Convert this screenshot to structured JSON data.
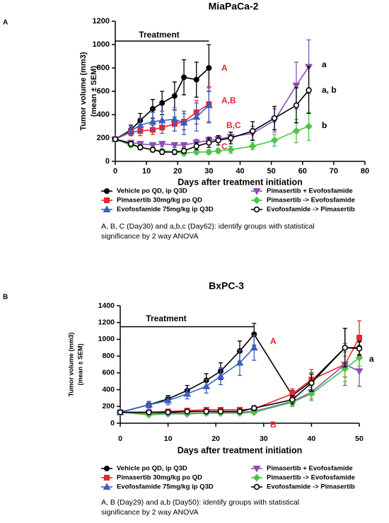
{
  "chart_data": [
    {
      "type": "line",
      "panel": "A",
      "title": "MiaPaCa-2",
      "ylabel": [
        "Tumor volume (mm3)",
        "(mean ± SEM)"
      ],
      "xlabel": "Days after treatment initiation",
      "xlim": [
        0,
        80
      ],
      "xticks": [
        0,
        10,
        20,
        30,
        40,
        50,
        60,
        70,
        80
      ],
      "ylim": [
        0,
        1200
      ],
      "yticks": [
        0,
        200,
        400,
        600,
        800,
        1000,
        1200
      ],
      "treatment": "Treatment",
      "annotations": [
        {
          "text": "A",
          "color": "#e8262a"
        },
        {
          "text": "A,B",
          "color": "#e8262a"
        },
        {
          "text": "B,C",
          "color": "#e8262a"
        },
        {
          "text": "C",
          "color": "#e8262a"
        },
        {
          "text": "a",
          "color": "#000000"
        },
        {
          "text": "a, b",
          "color": "#000000"
        },
        {
          "text": "b",
          "color": "#000000"
        }
      ],
      "note": [
        "A, B, C (Day30) and a,b,c (Day62): identify groups with statistical",
        "significance by 2 way ANOVA"
      ],
      "series": [
        {
          "name": "Vehicle po QD, ip Q3D",
          "color": "#000000",
          "marker": "circle",
          "x": [
            0,
            5,
            8,
            12,
            15,
            19,
            22,
            26,
            30
          ],
          "values": [
            190,
            270,
            350,
            450,
            500,
            560,
            720,
            700,
            800
          ],
          "errors": [
            10,
            40,
            60,
            80,
            100,
            120,
            150,
            150,
            200
          ]
        },
        {
          "name": "Pimasertib 30mg/kg po QD",
          "color": "#e8262a",
          "marker": "square",
          "x": [
            0,
            5,
            8,
            12,
            15,
            19,
            22,
            26,
            30
          ],
          "values": [
            190,
            250,
            260,
            270,
            290,
            320,
            340,
            420,
            490
          ],
          "errors": [
            10,
            30,
            40,
            40,
            50,
            60,
            70,
            100,
            150
          ]
        },
        {
          "name": "Evofosfamide 75mg/kg ip Q3D",
          "color": "#3a5fbf",
          "marker": "triangle",
          "x": [
            0,
            5,
            8,
            12,
            15,
            19,
            22,
            26,
            30
          ],
          "values": [
            190,
            260,
            310,
            340,
            350,
            360,
            330,
            380,
            480
          ],
          "errors": [
            10,
            40,
            60,
            80,
            80,
            100,
            100,
            120,
            150
          ]
        },
        {
          "name": "Pimasertib + Evofosfamide",
          "color": "#8a4fb0",
          "marker": "triangle-down",
          "x": [
            0,
            5,
            8,
            12,
            15,
            19,
            22,
            26,
            30,
            33,
            37,
            44,
            51,
            58,
            62
          ],
          "values": [
            190,
            160,
            150,
            140,
            150,
            140,
            140,
            160,
            180,
            190,
            210,
            240,
            350,
            650,
            810
          ],
          "errors": [
            10,
            20,
            20,
            20,
            20,
            20,
            20,
            30,
            30,
            30,
            40,
            60,
            100,
            200,
            230
          ]
        },
        {
          "name": "Pimasertib -> Evofosfamide",
          "color": "#4fc24a",
          "marker": "diamond",
          "x": [
            0,
            5,
            8,
            12,
            15,
            19,
            22,
            26,
            30,
            33,
            37,
            44,
            51,
            58,
            62
          ],
          "values": [
            190,
            140,
            120,
            100,
            90,
            80,
            70,
            80,
            80,
            90,
            100,
            130,
            180,
            260,
            300
          ],
          "errors": [
            10,
            20,
            20,
            20,
            20,
            20,
            20,
            20,
            20,
            20,
            30,
            30,
            50,
            100,
            120
          ]
        },
        {
          "name": "Evofosfamide -> Pimasertib",
          "color": "#000000",
          "marker": "circle-open",
          "x": [
            0,
            5,
            8,
            12,
            15,
            19,
            22,
            26,
            30,
            33,
            37,
            44,
            51,
            58,
            62
          ],
          "values": [
            190,
            150,
            120,
            100,
            80,
            80,
            90,
            130,
            160,
            180,
            200,
            260,
            370,
            480,
            610
          ],
          "errors": [
            10,
            20,
            20,
            20,
            20,
            20,
            20,
            30,
            40,
            40,
            50,
            80,
            100,
            150,
            200
          ]
        }
      ]
    },
    {
      "type": "line",
      "panel": "B",
      "title": "BxPC-3",
      "ylabel": [
        "Tumor volume (mm3)",
        "(mean ± SEM)"
      ],
      "xlabel": "Days after treatment initiation",
      "xlim": [
        0,
        50
      ],
      "xticks": [
        0,
        10,
        20,
        30,
        40,
        50
      ],
      "ylim": [
        0,
        1400
      ],
      "yticks": [
        0,
        200,
        400,
        600,
        800,
        1000,
        1200,
        1400
      ],
      "treatment": "Treatment",
      "annotations": [
        {
          "text": "A",
          "color": "#e8262a"
        },
        {
          "text": "B",
          "color": "#e8262a"
        },
        {
          "text": "a",
          "color": "#000000"
        }
      ],
      "note": [
        "A, B (Day29) and a,b (Day50): identify groups with statistical",
        "significance by 2 way ANOVA"
      ],
      "series": [
        {
          "name": "Vehicle po QD, ip Q3D",
          "color": "#000000",
          "marker": "circle",
          "x": [
            0,
            6,
            10,
            14,
            18,
            21,
            25,
            28,
            36,
            40,
            47,
            50
          ],
          "values": [
            130,
            220,
            290,
            390,
            510,
            620,
            860,
            1060,
            330,
            500,
            900,
            900
          ],
          "errors": [
            10,
            40,
            40,
            60,
            80,
            100,
            120,
            130,
            60,
            100,
            230,
            80
          ]
        },
        {
          "name": "Pimasertib 30mg/kg po QD",
          "color": "#e8262a",
          "marker": "square",
          "x": [
            0,
            6,
            10,
            14,
            18,
            21,
            25,
            28,
            36,
            40,
            47,
            50
          ],
          "values": [
            130,
            130,
            140,
            150,
            160,
            160,
            160,
            170,
            350,
            520,
            700,
            1020
          ],
          "errors": [
            10,
            20,
            20,
            20,
            20,
            20,
            20,
            30,
            60,
            120,
            150,
            200
          ]
        },
        {
          "name": "Evofosfamide 75mg/kg ip Q3D",
          "color": "#3a5fbf",
          "marker": "triangle",
          "x": [
            0,
            6,
            10,
            14,
            18,
            21,
            25,
            28
          ],
          "values": [
            130,
            220,
            270,
            350,
            440,
            560,
            720,
            900
          ],
          "errors": [
            10,
            40,
            50,
            60,
            80,
            100,
            150,
            150
          ]
        },
        {
          "name": "Pimasertib + Evofosfamide",
          "color": "#8a4fb0",
          "marker": "triangle-down",
          "x": [
            0,
            6,
            10,
            14,
            18,
            21,
            25,
            28,
            36,
            40,
            47,
            50
          ],
          "values": [
            130,
            110,
            120,
            120,
            120,
            130,
            130,
            140,
            260,
            370,
            700,
            620
          ],
          "errors": [
            10,
            20,
            20,
            20,
            20,
            20,
            20,
            20,
            50,
            80,
            250,
            180
          ]
        },
        {
          "name": "Pimasertib -> Evofosfamide",
          "color": "#4fc24a",
          "marker": "diamond",
          "x": [
            0,
            6,
            10,
            14,
            18,
            21,
            25,
            28,
            36,
            40,
            47,
            50
          ],
          "values": [
            130,
            100,
            110,
            110,
            120,
            120,
            120,
            130,
            250,
            350,
            650,
            780
          ],
          "errors": [
            10,
            20,
            20,
            20,
            20,
            20,
            20,
            20,
            50,
            80,
            150,
            100
          ]
        },
        {
          "name": "Evofosfamide -> Pimasertib",
          "color": "#000000",
          "marker": "circle-open",
          "x": [
            0,
            6,
            10,
            14,
            18,
            21,
            25,
            28,
            36,
            40,
            47,
            50
          ],
          "values": [
            130,
            130,
            130,
            140,
            140,
            140,
            140,
            180,
            280,
            480,
            900,
            890
          ],
          "errors": [
            10,
            20,
            20,
            20,
            20,
            20,
            20,
            30,
            50,
            100,
            230,
            80
          ]
        }
      ]
    }
  ]
}
